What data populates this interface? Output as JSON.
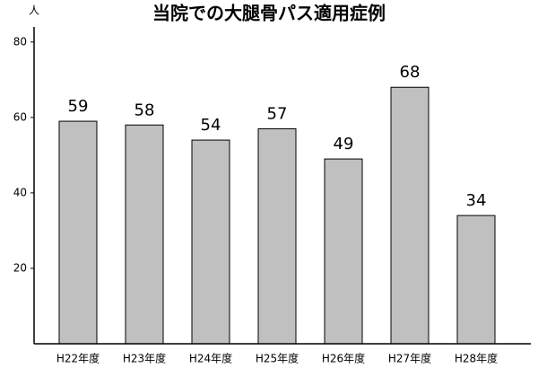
{
  "chart_data": {
    "type": "bar",
    "title": "当院での大腿骨パス適用症例",
    "y_label": "人",
    "categories": [
      "H22年度",
      "H23年度",
      "H24年度",
      "H25年度",
      "H26年度",
      "H27年度",
      "H28年度"
    ],
    "values": [
      59,
      58,
      54,
      57,
      49,
      68,
      34
    ],
    "color": "#c0c0c0",
    "ylim": [
      0,
      84
    ],
    "yticks": [
      20,
      40,
      60,
      80
    ],
    "grid": false
  }
}
